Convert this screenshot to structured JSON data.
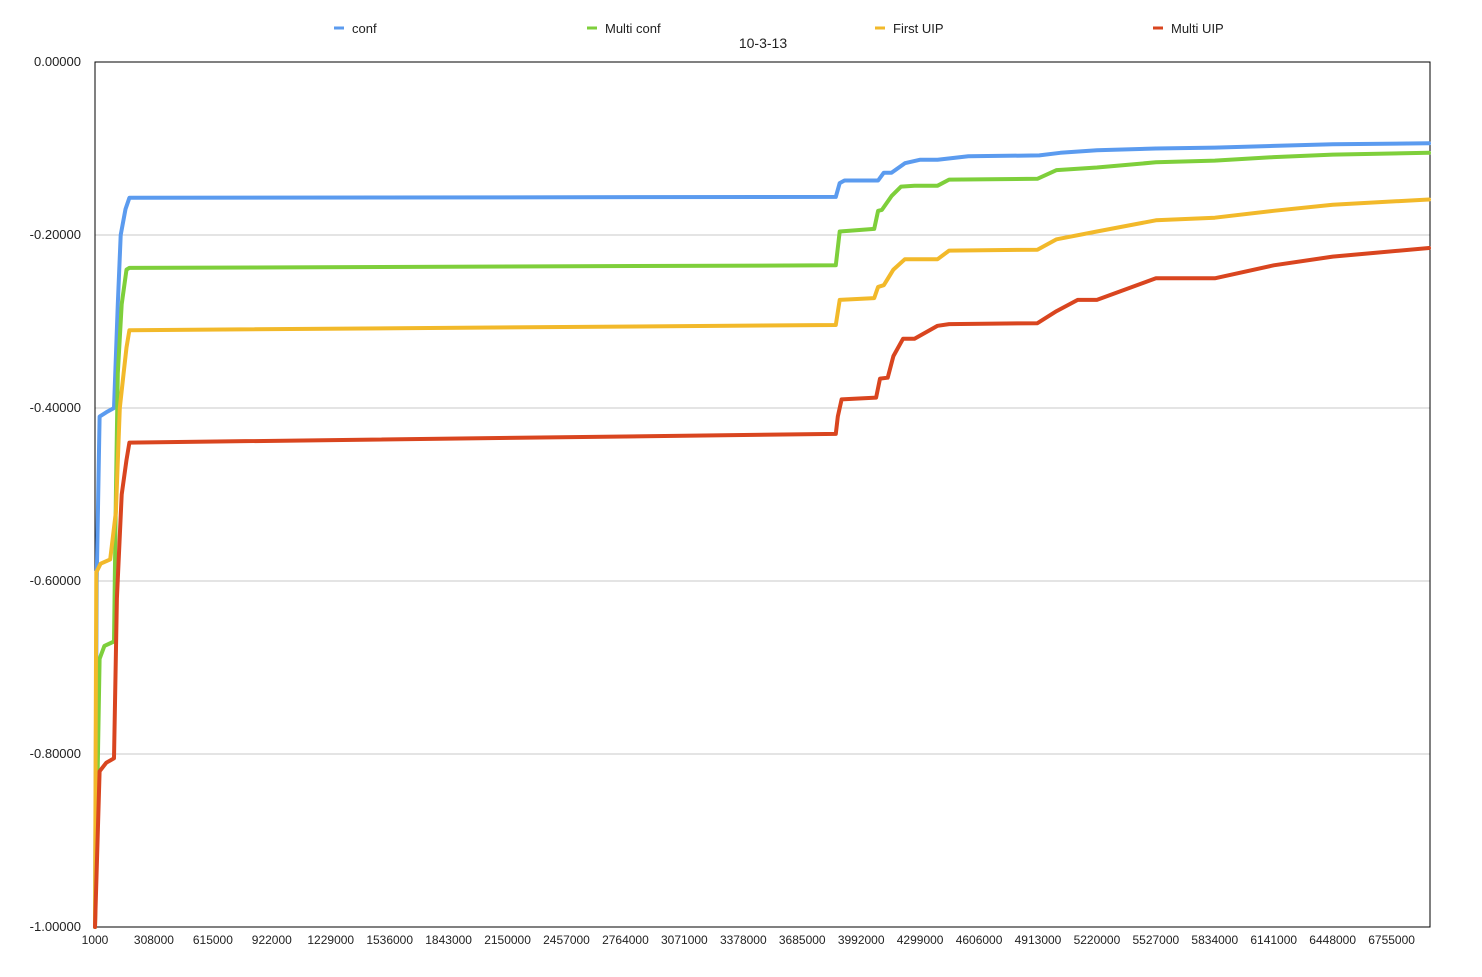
{
  "chart_data": {
    "type": "line",
    "title": "10-3-13",
    "xlabel": "",
    "ylabel": "",
    "ylim": [
      -1.0,
      0.0
    ],
    "y_ticks": [
      "0.00000",
      "-0.20000",
      "-0.40000",
      "-0.60000",
      "-0.80000",
      "-1.00000"
    ],
    "y_tick_values": [
      0,
      -0.2,
      -0.4,
      -0.6,
      -0.8,
      -1.0
    ],
    "x_ticks": [
      "1000",
      "308000",
      "615000",
      "922000",
      "1229000",
      "1536000",
      "1843000",
      "2150000",
      "2457000",
      "2764000",
      "3071000",
      "3378000",
      "3685000",
      "3992000",
      "4299000",
      "4606000",
      "4913000",
      "5220000",
      "5527000",
      "5834000",
      "6141000",
      "6448000",
      "6755000"
    ],
    "x_tick_values": [
      1000,
      308000,
      615000,
      922000,
      1229000,
      1536000,
      1843000,
      2150000,
      2457000,
      2764000,
      3071000,
      3378000,
      3685000,
      3992000,
      4299000,
      4606000,
      4913000,
      5220000,
      5527000,
      5834000,
      6141000,
      6448000,
      6755000
    ],
    "xlim": [
      1000,
      6955000
    ],
    "grid": "horizontal",
    "legend_position": "top",
    "series": [
      {
        "name": "conf",
        "color": "#5b9bef",
        "x": [
          1000,
          10000,
          25000,
          60000,
          100000,
          120000,
          135000,
          160000,
          180000,
          3860000,
          3880000,
          3905000,
          4080000,
          4110000,
          4150000,
          4220000,
          4300000,
          4390000,
          4550000,
          4920000,
          5030000,
          5220000,
          5527000,
          5834000,
          6141000,
          6448000,
          6950000
        ],
        "y": [
          -1.0,
          -0.6,
          -0.41,
          -0.405,
          -0.4,
          -0.28,
          -0.2,
          -0.17,
          -0.157,
          -0.156,
          -0.14,
          -0.137,
          -0.137,
          -0.128,
          -0.128,
          -0.117,
          -0.113,
          -0.113,
          -0.109,
          -0.108,
          -0.105,
          -0.102,
          -0.1,
          -0.099,
          -0.097,
          -0.095,
          -0.094
        ]
      },
      {
        "name": "Multi conf",
        "color": "#7ecf3b",
        "x": [
          1000,
          25000,
          50000,
          100000,
          110000,
          120000,
          140000,
          165000,
          180000,
          3860000,
          3880000,
          4060000,
          4080000,
          4100000,
          4150000,
          4200000,
          4270000,
          4390000,
          4450000,
          4910000,
          5010000,
          5220000,
          5527000,
          5834000,
          6141000,
          6448000,
          6950000
        ],
        "y": [
          -1.0,
          -0.69,
          -0.675,
          -0.67,
          -0.5,
          -0.36,
          -0.28,
          -0.24,
          -0.238,
          -0.235,
          -0.196,
          -0.193,
          -0.172,
          -0.171,
          -0.155,
          -0.144,
          -0.143,
          -0.143,
          -0.136,
          -0.135,
          -0.125,
          -0.122,
          -0.116,
          -0.114,
          -0.11,
          -0.107,
          -0.105
        ]
      },
      {
        "name": "First UIP",
        "color": "#f2b92a",
        "x": [
          1000,
          8000,
          30000,
          80000,
          110000,
          130000,
          150000,
          165000,
          180000,
          3860000,
          3880000,
          4060000,
          4080000,
          4110000,
          4160000,
          4220000,
          4290000,
          4390000,
          4450000,
          4910000,
          5010000,
          5220000,
          5527000,
          5834000,
          6141000,
          6448000,
          6950000
        ],
        "y": [
          -1.0,
          -0.59,
          -0.58,
          -0.575,
          -0.52,
          -0.4,
          -0.36,
          -0.33,
          -0.31,
          -0.304,
          -0.275,
          -0.273,
          -0.26,
          -0.258,
          -0.24,
          -0.228,
          -0.228,
          -0.228,
          -0.218,
          -0.217,
          -0.205,
          -0.196,
          -0.183,
          -0.18,
          -0.172,
          -0.165,
          -0.159
        ]
      },
      {
        "name": "Multi UIP",
        "color": "#d9451f",
        "x": [
          1000,
          25000,
          60000,
          100000,
          115000,
          140000,
          165000,
          180000,
          3860000,
          3870000,
          3890000,
          4070000,
          4090000,
          4130000,
          4160000,
          4210000,
          4270000,
          4390000,
          4450000,
          4910000,
          5010000,
          5120000,
          5220000,
          5527000,
          5834000,
          6141000,
          6448000,
          6950000
        ],
        "y": [
          -1.0,
          -0.82,
          -0.81,
          -0.805,
          -0.62,
          -0.5,
          -0.46,
          -0.44,
          -0.43,
          -0.41,
          -0.39,
          -0.388,
          -0.366,
          -0.365,
          -0.34,
          -0.32,
          -0.32,
          -0.305,
          -0.303,
          -0.302,
          -0.288,
          -0.275,
          -0.275,
          -0.25,
          -0.25,
          -0.235,
          -0.225,
          -0.215
        ]
      }
    ]
  }
}
